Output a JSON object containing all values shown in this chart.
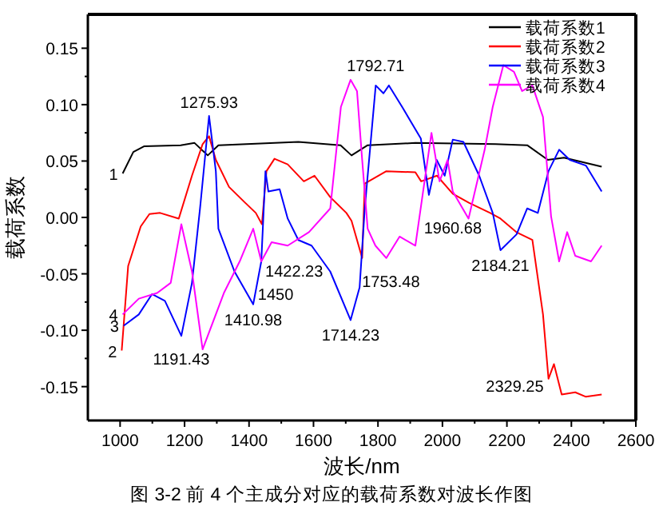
{
  "chart_data": {
    "type": "line",
    "xlabel": "波长/nm",
    "ylabel": "载荷系数",
    "xlim": [
      900,
      2600
    ],
    "ylim": [
      -0.18,
      0.18
    ],
    "xticks": [
      1000,
      1200,
      1400,
      1600,
      1800,
      2000,
      2200,
      2400,
      2600
    ],
    "yticks": [
      {
        "value": -0.15,
        "label": "-0.15"
      },
      {
        "value": -0.1,
        "label": "-0.10"
      },
      {
        "value": -0.05,
        "label": "-0.05"
      },
      {
        "value": 0,
        "label": "0.00"
      },
      {
        "value": 0.05,
        "label": "0.05"
      },
      {
        "value": 0.1,
        "label": "0.10"
      },
      {
        "value": 0.15,
        "label": "0.15"
      }
    ],
    "legend": "top right",
    "marker": "none",
    "line_style": "solid",
    "series": [
      {
        "name": "载荷系数1",
        "color": "#000000",
        "x": [
          1008,
          1041,
          1074,
          1188,
          1231,
          1272,
          1305,
          1553,
          1684,
          1718,
          1768,
          1916,
          2164,
          2263,
          2327,
          2377,
          2494
        ],
        "values": [
          0.039,
          0.058,
          0.063,
          0.064,
          0.066,
          0.055,
          0.064,
          0.067,
          0.064,
          0.055,
          0.064,
          0.066,
          0.065,
          0.064,
          0.051,
          0.053,
          0.045
        ]
      },
      {
        "name": "载荷系数2",
        "color": "#ff0000",
        "x": [
          1005,
          1025,
          1064,
          1091,
          1124,
          1182,
          1223,
          1256,
          1276,
          1297,
          1338,
          1388,
          1421,
          1440,
          1454,
          1479,
          1520,
          1570,
          1603,
          1652,
          1702,
          1718,
          1751,
          1759,
          1826,
          1916,
          1934,
          1983,
          2032,
          2082,
          2148,
          2180,
          2229,
          2279,
          2312,
          2329,
          2346,
          2370,
          2412,
          2445,
          2494
        ],
        "values": [
          -0.118,
          -0.043,
          -0.008,
          0.003,
          0.004,
          -0.001,
          0.037,
          0.065,
          0.072,
          0.051,
          0.027,
          0.013,
          0.004,
          -0.006,
          0.041,
          0.052,
          0.047,
          0.032,
          0.037,
          0.018,
          0.004,
          -0.003,
          -0.036,
          0.03,
          0.041,
          0.04,
          0.032,
          0.037,
          0.021,
          0.013,
          0.004,
          -0.001,
          -0.013,
          -0.02,
          -0.086,
          -0.143,
          -0.13,
          -0.157,
          -0.155,
          -0.159,
          -0.157
        ]
      },
      {
        "name": "载荷系数3",
        "color": "#0000ff",
        "x": [
          1011,
          1058,
          1099,
          1139,
          1190,
          1223,
          1248,
          1276,
          1297,
          1305,
          1355,
          1413,
          1438,
          1451,
          1460,
          1495,
          1520,
          1553,
          1594,
          1652,
          1715,
          1743,
          1759,
          1793,
          1817,
          1834,
          1875,
          1933,
          1958,
          1982,
          2007,
          2032,
          2065,
          2114,
          2156,
          2180,
          2230,
          2263,
          2296,
          2329,
          2362,
          2395,
          2445,
          2494
        ],
        "values": [
          -0.096,
          -0.086,
          -0.068,
          -0.074,
          -0.105,
          -0.058,
          0.008,
          0.09,
          0.041,
          -0.01,
          -0.048,
          -0.077,
          -0.039,
          0.041,
          0.023,
          0.025,
          -0.001,
          -0.02,
          -0.025,
          -0.048,
          -0.091,
          -0.062,
          0.008,
          0.117,
          0.11,
          0.117,
          0.098,
          0.07,
          0.02,
          0.051,
          0.037,
          0.069,
          0.067,
          0.037,
          0.004,
          -0.029,
          -0.015,
          0.008,
          0.004,
          0.041,
          0.06,
          0.051,
          0.046,
          0.023
        ]
      },
      {
        "name": "载荷系数4",
        "color": "#ff00ff",
        "x": [
          1008,
          1058,
          1115,
          1157,
          1190,
          1223,
          1256,
          1322,
          1371,
          1413,
          1438,
          1470,
          1520,
          1586,
          1652,
          1685,
          1715,
          1735,
          1751,
          1768,
          1792,
          1826,
          1867,
          1916,
          1966,
          1991,
          2016,
          2032,
          2081,
          2131,
          2156,
          2189,
          2222,
          2247,
          2279,
          2312,
          2337,
          2362,
          2387,
          2412,
          2461,
          2494
        ],
        "values": [
          -0.086,
          -0.072,
          -0.067,
          -0.058,
          -0.006,
          -0.048,
          -0.117,
          -0.067,
          -0.039,
          -0.01,
          -0.039,
          -0.022,
          -0.025,
          -0.013,
          0.008,
          0.098,
          0.122,
          0.112,
          0.051,
          -0.01,
          -0.025,
          -0.036,
          -0.017,
          -0.025,
          0.075,
          0.032,
          0.051,
          0.023,
          -0.001,
          0.06,
          0.098,
          0.135,
          0.129,
          0.112,
          0.117,
          0.089,
          0.001,
          -0.039,
          -0.013,
          -0.034,
          -0.039,
          -0.025
        ]
      }
    ],
    "annotations": [
      {
        "text": "1275.93",
        "x": 1276,
        "y": 0.09
      },
      {
        "text": "1792.71",
        "x": 1793,
        "y": 0.117
      },
      {
        "text": "1422.23",
        "x": 1421,
        "y": -0.006
      },
      {
        "text": "1960.68",
        "x": 1958,
        "y": 0.02
      },
      {
        "text": "1450",
        "x": 1438,
        "y": -0.039
      },
      {
        "text": "1410.98",
        "x": 1413,
        "y": -0.077
      },
      {
        "text": "1753.48",
        "x": 1751,
        "y": -0.036
      },
      {
        "text": "2184.21",
        "x": 2180,
        "y": -0.029
      },
      {
        "text": "1191.43",
        "x": 1190,
        "y": -0.105
      },
      {
        "text": "1714.23",
        "x": 1715,
        "y": -0.091
      },
      {
        "text": "2329.25",
        "x": 2329,
        "y": -0.143
      },
      {
        "text": "1",
        "x": 1008,
        "y": 0.039
      },
      {
        "text": "2",
        "x": 1005,
        "y": -0.118
      },
      {
        "text": "3",
        "x": 1011,
        "y": -0.096
      },
      {
        "text": "4",
        "x": 1008,
        "y": -0.086
      },
      "图 3-2 前 4 个主成分对应的载荷系数对波长作图"
    ]
  }
}
